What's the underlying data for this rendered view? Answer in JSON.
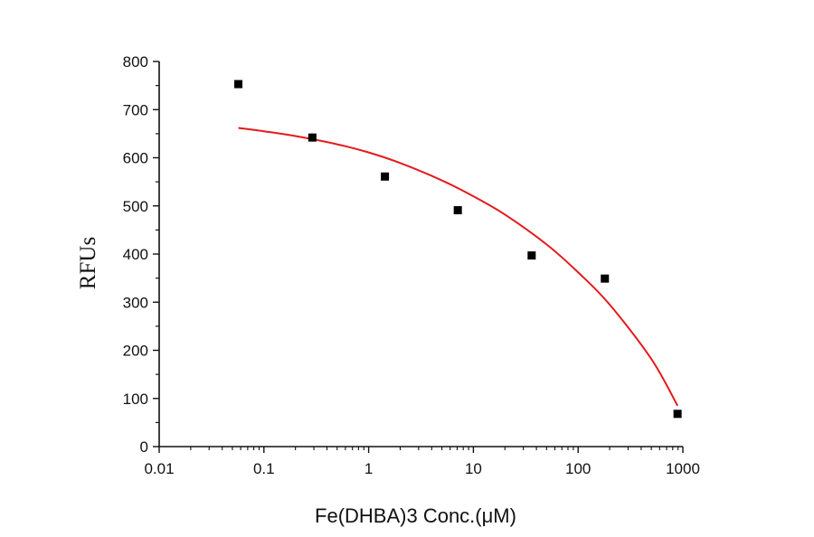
{
  "chart_data": {
    "type": "scatter",
    "xlabel": "Fe(DHBA)3 Conc.(μM)",
    "ylabel": "RFUs",
    "xscale": "log",
    "xlim": [
      0.01,
      1000
    ],
    "ylim": [
      0,
      800
    ],
    "x_ticks": [
      0.01,
      0.1,
      1,
      10,
      100,
      1000
    ],
    "x_tick_labels": [
      "0.01",
      "0.1",
      "1",
      "10",
      "100",
      "1000"
    ],
    "y_ticks": [
      0,
      100,
      200,
      300,
      400,
      500,
      600,
      700,
      800
    ],
    "y_tick_labels": [
      "0",
      "100",
      "200",
      "300",
      "400",
      "500",
      "600",
      "700",
      "800"
    ],
    "grid": false,
    "legend": "none",
    "series": [
      {
        "type": "scatter",
        "marker": "square",
        "color": "#000000",
        "x": [
          0.057,
          0.29,
          1.43,
          7.1,
          36,
          180,
          890
        ],
        "y": [
          753,
          642,
          561,
          491,
          397,
          349,
          68
        ]
      },
      {
        "type": "line",
        "color": "#e41a1c",
        "x": [
          0.057,
          0.1,
          0.2,
          0.5,
          1,
          2,
          5,
          10,
          20,
          50,
          100,
          200,
          500,
          890
        ],
        "y": [
          662,
          655,
          645,
          628,
          611,
          589,
          553,
          520,
          482,
          420,
          362,
          295,
          182,
          85
        ]
      }
    ]
  }
}
